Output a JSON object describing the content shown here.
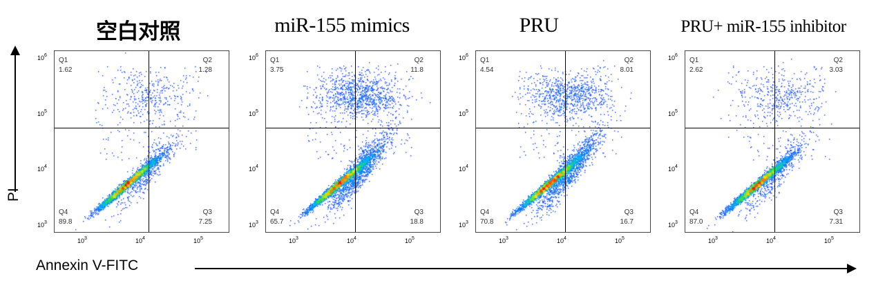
{
  "figure": {
    "y_axis_label": "PI",
    "x_axis_label": "Annexin V-FITC"
  },
  "chart_data": [
    {
      "type": "scatter",
      "title": "空白对照",
      "xlabel": "Annexin V-FITC",
      "ylabel": "PI",
      "x_scale": "log",
      "y_scale": "log",
      "x_ticks": [
        "10^3",
        "10^4",
        "10^5"
      ],
      "y_ticks": [
        "10^3",
        "10^4",
        "10^5",
        "10^6"
      ],
      "quadrant_gate": {
        "x": 13000,
        "y": 60000
      },
      "quadrants": [
        {
          "name": "Q1",
          "value": "1.62"
        },
        {
          "name": "Q2",
          "value": "1.28"
        },
        {
          "name": "Q3",
          "value": "7.25"
        },
        {
          "name": "Q4",
          "value": "89.8"
        }
      ]
    },
    {
      "type": "scatter",
      "title": "miR-155 mimics",
      "xlabel": "Annexin V-FITC",
      "ylabel": "PI",
      "x_scale": "log",
      "y_scale": "log",
      "x_ticks": [
        "10^3",
        "10^4",
        "10^5"
      ],
      "y_ticks": [
        "10^3",
        "10^4",
        "10^5",
        "10^6"
      ],
      "quadrant_gate": {
        "x": 11000,
        "y": 60000
      },
      "quadrants": [
        {
          "name": "Q1",
          "value": "3.75"
        },
        {
          "name": "Q2",
          "value": "11.8"
        },
        {
          "name": "Q3",
          "value": "18.8"
        },
        {
          "name": "Q4",
          "value": "65.7"
        }
      ]
    },
    {
      "type": "scatter",
      "title": "PRU",
      "xlabel": "Annexin V-FITC",
      "ylabel": "PI",
      "x_scale": "log",
      "y_scale": "log",
      "x_ticks": [
        "10^3",
        "10^4",
        "10^5"
      ],
      "y_ticks": [
        "10^3",
        "10^4",
        "10^5",
        "10^6"
      ],
      "quadrant_gate": {
        "x": 11000,
        "y": 60000
      },
      "quadrants": [
        {
          "name": "Q1",
          "value": "4.54"
        },
        {
          "name": "Q2",
          "value": "8.01"
        },
        {
          "name": "Q3",
          "value": "16.7"
        },
        {
          "name": "Q4",
          "value": "70.8"
        }
      ]
    },
    {
      "type": "scatter",
      "title": "PRU+ miR-155 inhibitor",
      "xlabel": "Annexin V-FITC",
      "ylabel": "PI",
      "x_scale": "log",
      "y_scale": "log",
      "x_ticks": [
        "10^3",
        "10^4",
        "10^5"
      ],
      "y_ticks": [
        "10^3",
        "10^4",
        "10^5",
        "10^6"
      ],
      "quadrant_gate": {
        "x": 11000,
        "y": 60000
      },
      "quadrants": [
        {
          "name": "Q1",
          "value": "2.62"
        },
        {
          "name": "Q2",
          "value": "3.03"
        },
        {
          "name": "Q3",
          "value": "7.31"
        },
        {
          "name": "Q4",
          "value": "87.0"
        }
      ]
    }
  ]
}
